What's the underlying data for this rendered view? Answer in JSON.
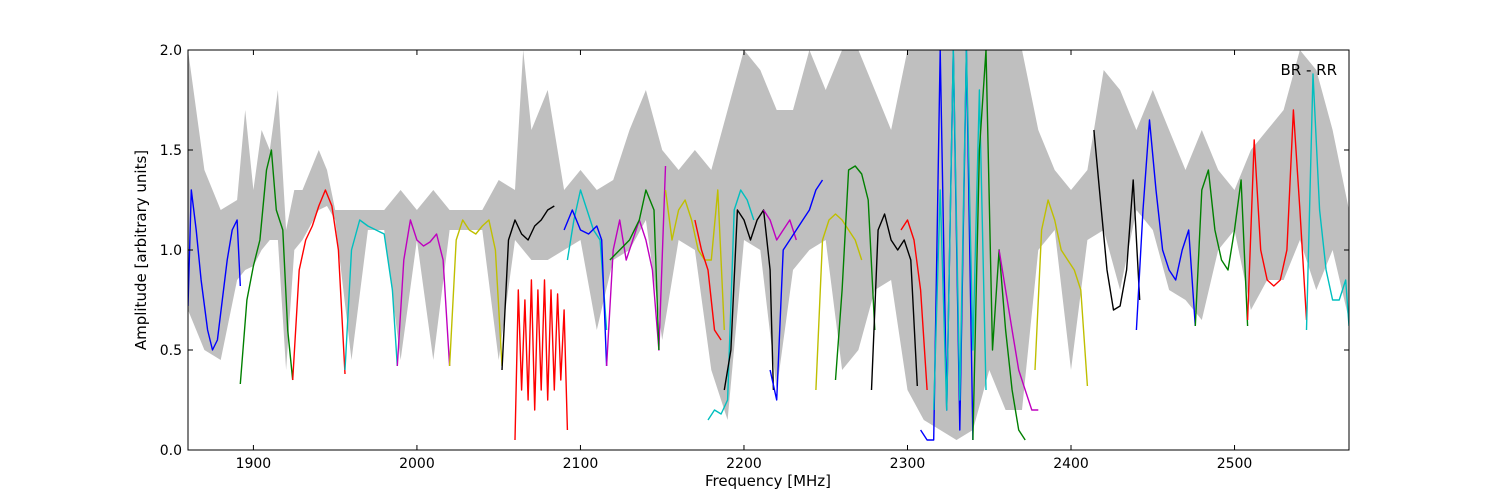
{
  "chart_data": {
    "type": "line",
    "title": "",
    "xlabel": "Frequency [MHz]",
    "ylabel": "Amplitude [arbitrary units]",
    "xlim": [
      1860,
      2570
    ],
    "ylim": [
      0.0,
      2.0
    ],
    "xticks": [
      1900,
      2000,
      2100,
      2200,
      2300,
      2400,
      2500
    ],
    "xtick_labels": [
      "1900",
      "2000",
      "2100",
      "2200",
      "2300",
      "2400",
      "2500"
    ],
    "yticks": [
      0.0,
      0.5,
      1.0,
      1.5,
      2.0
    ],
    "ytick_labels": [
      "0.0",
      "0.5",
      "1.0",
      "1.5",
      "2.0"
    ],
    "annotation": "BR - RR",
    "grid": false,
    "envelope": {
      "color": "#bfbfbf",
      "x": [
        1860,
        1870,
        1880,
        1890,
        1895,
        1900,
        1905,
        1910,
        1915,
        1920,
        1925,
        1930,
        1940,
        1945,
        1950,
        1960,
        1970,
        1980,
        1990,
        2000,
        2010,
        2020,
        2030,
        2040,
        2050,
        2060,
        2065,
        2070,
        2080,
        2090,
        2100,
        2110,
        2120,
        2130,
        2140,
        2150,
        2160,
        2170,
        2180,
        2190,
        2200,
        2210,
        2220,
        2230,
        2240,
        2250,
        2260,
        2270,
        2280,
        2290,
        2300,
        2310,
        2320,
        2330,
        2340,
        2350,
        2360,
        2370,
        2380,
        2390,
        2400,
        2410,
        2420,
        2430,
        2440,
        2450,
        2460,
        2470,
        2480,
        2490,
        2500,
        2510,
        2520,
        2530,
        2540,
        2550,
        2560,
        2570
      ],
      "low": [
        0.7,
        0.5,
        0.45,
        0.85,
        0.9,
        0.92,
        1.0,
        1.05,
        1.05,
        0.4,
        1.0,
        1.05,
        1.2,
        1.22,
        1.15,
        0.45,
        1.1,
        1.1,
        0.45,
        1.05,
        0.45,
        1.1,
        1.1,
        1.1,
        0.45,
        1.05,
        1.0,
        0.95,
        0.95,
        1.0,
        1.05,
        0.6,
        0.95,
        1.0,
        1.15,
        0.55,
        1.05,
        1.0,
        0.4,
        0.15,
        1.05,
        1.0,
        0.3,
        0.9,
        1.0,
        1.05,
        0.4,
        0.5,
        0.8,
        0.85,
        0.3,
        0.15,
        0.1,
        0.05,
        0.1,
        0.4,
        0.2,
        0.2,
        1.0,
        1.1,
        0.4,
        1.05,
        1.1,
        0.8,
        1.2,
        1.1,
        0.8,
        0.75,
        0.65,
        1.0,
        1.1,
        0.7,
        0.85,
        0.85,
        1.05,
        0.8,
        1.0,
        0.65
      ],
      "high": [
        2.0,
        1.4,
        1.2,
        1.25,
        1.7,
        1.3,
        1.6,
        1.5,
        1.8,
        1.1,
        1.3,
        1.3,
        1.5,
        1.4,
        1.2,
        1.2,
        1.2,
        1.2,
        1.3,
        1.2,
        1.3,
        1.2,
        1.2,
        1.2,
        1.35,
        1.3,
        2.0,
        1.6,
        1.8,
        1.3,
        1.4,
        1.3,
        1.35,
        1.6,
        1.8,
        1.5,
        1.4,
        1.5,
        1.4,
        1.7,
        2.0,
        1.9,
        1.7,
        1.7,
        2.0,
        1.8,
        2.0,
        2.0,
        1.8,
        1.6,
        2.0,
        2.0,
        2.0,
        2.0,
        2.0,
        2.0,
        2.0,
        2.0,
        1.6,
        1.4,
        1.3,
        1.4,
        1.9,
        1.8,
        1.6,
        1.8,
        1.6,
        1.4,
        1.6,
        1.4,
        1.3,
        1.5,
        1.6,
        1.7,
        2.0,
        1.9,
        1.6,
        1.2
      ]
    },
    "series": [
      {
        "color": "#0000ff",
        "x": [
          1860,
          1862,
          1865,
          1868,
          1872,
          1875,
          1878,
          1881,
          1884,
          1887,
          1890,
          1892
        ],
        "y": [
          0.72,
          1.3,
          1.1,
          0.85,
          0.6,
          0.5,
          0.55,
          0.75,
          0.95,
          1.1,
          1.15,
          0.82
        ]
      },
      {
        "color": "#008000",
        "x": [
          1892,
          1896,
          1900,
          1904,
          1908,
          1911,
          1914,
          1918,
          1921,
          1924
        ],
        "y": [
          0.33,
          0.75,
          0.92,
          1.05,
          1.4,
          1.5,
          1.2,
          1.1,
          0.6,
          0.35
        ]
      },
      {
        "color": "#ff0000",
        "x": [
          1924,
          1928,
          1932,
          1936,
          1940,
          1944,
          1948,
          1952,
          1956
        ],
        "y": [
          0.35,
          0.9,
          1.05,
          1.12,
          1.22,
          1.3,
          1.22,
          1.0,
          0.38
        ]
      },
      {
        "color": "#00bfbf",
        "x": [
          1956,
          1960,
          1965,
          1970,
          1975,
          1980,
          1985,
          1988
        ],
        "y": [
          0.4,
          1.0,
          1.15,
          1.12,
          1.1,
          1.08,
          0.8,
          0.42
        ]
      },
      {
        "color": "#bf00bf",
        "x": [
          1988,
          1992,
          1996,
          2000,
          2004,
          2008,
          2012,
          2016,
          2020
        ],
        "y": [
          0.42,
          0.95,
          1.15,
          1.05,
          1.02,
          1.04,
          1.08,
          0.95,
          0.42
        ]
      },
      {
        "color": "#bfbf00",
        "x": [
          2020,
          2024,
          2028,
          2032,
          2036,
          2040,
          2044,
          2048,
          2052
        ],
        "y": [
          0.42,
          1.05,
          1.15,
          1.1,
          1.08,
          1.12,
          1.15,
          1.0,
          0.42
        ]
      },
      {
        "color": "#000000",
        "x": [
          2052,
          2056,
          2060,
          2064,
          2068,
          2072,
          2076,
          2080,
          2084
        ],
        "y": [
          0.4,
          1.05,
          1.15,
          1.08,
          1.05,
          1.12,
          1.15,
          1.2,
          1.22
        ]
      },
      {
        "color": "#ff0000",
        "x": [
          2060,
          2062,
          2064,
          2066,
          2068,
          2070,
          2072,
          2074,
          2076,
          2078,
          2080,
          2082,
          2084,
          2086,
          2088,
          2090,
          2092
        ],
        "y": [
          0.05,
          0.8,
          0.3,
          0.75,
          0.25,
          0.85,
          0.2,
          0.8,
          0.3,
          0.85,
          0.25,
          0.8,
          0.3,
          0.78,
          0.35,
          0.7,
          0.1
        ]
      },
      {
        "color": "#00bfbf",
        "x": [
          2092,
          2096,
          2100,
          2104,
          2108,
          2112,
          2116
        ],
        "y": [
          0.95,
          1.15,
          1.3,
          1.2,
          1.1,
          1.05,
          0.6
        ]
      },
      {
        "color": "#0000ff",
        "x": [
          2090,
          2095,
          2100,
          2105,
          2110,
          2113,
          2116
        ],
        "y": [
          1.1,
          1.2,
          1.1,
          1.08,
          1.12,
          1.05,
          0.42
        ]
      },
      {
        "color": "#bf00bf",
        "x": [
          2116,
          2120,
          2124,
          2128,
          2132,
          2136,
          2140,
          2144,
          2148,
          2152
        ],
        "y": [
          0.42,
          1.0,
          1.15,
          0.95,
          1.05,
          1.15,
          1.05,
          0.9,
          0.5,
          1.42
        ]
      },
      {
        "color": "#008000",
        "x": [
          2118,
          2124,
          2130,
          2136,
          2140,
          2145,
          2148
        ],
        "y": [
          0.95,
          1.0,
          1.05,
          1.15,
          1.3,
          1.2,
          0.5
        ]
      },
      {
        "color": "#bfbf00",
        "x": [
          2152,
          2156,
          2160,
          2164,
          2168,
          2172,
          2176,
          2180,
          2184,
          2188
        ],
        "y": [
          1.3,
          1.05,
          1.2,
          1.25,
          1.15,
          1.0,
          0.95,
          0.95,
          1.3,
          0.6
        ]
      },
      {
        "color": "#ff0000",
        "x": [
          2170,
          2174,
          2178,
          2182,
          2186
        ],
        "y": [
          1.15,
          1.0,
          0.9,
          0.6,
          0.55
        ]
      },
      {
        "color": "#00bfbf",
        "x": [
          2178,
          2182,
          2186,
          2190,
          2194,
          2198,
          2202,
          2206
        ],
        "y": [
          0.15,
          0.2,
          0.18,
          0.25,
          1.2,
          1.3,
          1.25,
          1.15
        ]
      },
      {
        "color": "#000000",
        "x": [
          2188,
          2192,
          2196,
          2200,
          2204,
          2208,
          2212,
          2216,
          2218
        ],
        "y": [
          0.3,
          0.5,
          1.2,
          1.15,
          1.05,
          1.15,
          1.2,
          0.9,
          0.3
        ]
      },
      {
        "color": "#bf00bf",
        "x": [
          2212,
          2216,
          2220,
          2224,
          2228,
          2232
        ],
        "y": [
          1.2,
          1.15,
          1.05,
          1.1,
          1.15,
          1.05
        ]
      },
      {
        "color": "#0000ff",
        "x": [
          2216,
          2220,
          2224,
          2228,
          2232,
          2236,
          2240,
          2244,
          2248
        ],
        "y": [
          0.4,
          0.25,
          1.0,
          1.05,
          1.1,
          1.15,
          1.2,
          1.3,
          1.35
        ]
      },
      {
        "color": "#bfbf00",
        "x": [
          2244,
          2248,
          2252,
          2256,
          2260,
          2264,
          2268,
          2272
        ],
        "y": [
          0.3,
          1.05,
          1.15,
          1.18,
          1.15,
          1.1,
          1.05,
          0.95
        ]
      },
      {
        "color": "#008000",
        "x": [
          2256,
          2260,
          2264,
          2268,
          2272,
          2276,
          2280
        ],
        "y": [
          0.35,
          0.8,
          1.4,
          1.42,
          1.38,
          1.25,
          0.6
        ]
      },
      {
        "color": "#000000",
        "x": [
          2278,
          2282,
          2286,
          2290,
          2294,
          2298,
          2302,
          2306
        ],
        "y": [
          0.3,
          1.1,
          1.18,
          1.05,
          1.0,
          1.05,
          0.95,
          0.32
        ]
      },
      {
        "color": "#ff0000",
        "x": [
          2296,
          2300,
          2304,
          2308,
          2312
        ],
        "y": [
          1.1,
          1.15,
          1.05,
          0.8,
          0.3
        ]
      },
      {
        "color": "#0000ff",
        "x": [
          2308,
          2312,
          2316,
          2320,
          2324,
          2328,
          2332,
          2336,
          2340
        ],
        "y": [
          0.1,
          0.05,
          0.05,
          2.0,
          0.2,
          2.0,
          0.1,
          2.0,
          0.05
        ]
      },
      {
        "color": "#00bfbf",
        "x": [
          2316,
          2320,
          2324,
          2328,
          2332,
          2336,
          2340,
          2344,
          2348
        ],
        "y": [
          0.2,
          1.3,
          0.2,
          2.0,
          0.25,
          2.0,
          0.5,
          1.8,
          0.3
        ]
      },
      {
        "color": "#008000",
        "x": [
          2340,
          2344,
          2348,
          2352,
          2356,
          2360,
          2364,
          2368,
          2372
        ],
        "y": [
          0.05,
          1.5,
          2.0,
          0.5,
          1.0,
          0.6,
          0.3,
          0.1,
          0.05
        ]
      },
      {
        "color": "#bf00bf",
        "x": [
          2356,
          2360,
          2364,
          2368,
          2372,
          2376,
          2380
        ],
        "y": [
          1.0,
          0.8,
          0.6,
          0.4,
          0.3,
          0.2,
          0.2
        ]
      },
      {
        "color": "#bfbf00",
        "x": [
          2378,
          2382,
          2386,
          2390,
          2394,
          2398,
          2402,
          2406,
          2410
        ],
        "y": [
          0.4,
          1.1,
          1.25,
          1.15,
          1.0,
          0.95,
          0.9,
          0.8,
          0.32
        ]
      },
      {
        "color": "#000000",
        "x": [
          2414,
          2418,
          2422,
          2426,
          2430,
          2434,
          2438,
          2442
        ],
        "y": [
          1.6,
          1.25,
          0.9,
          0.7,
          0.72,
          0.9,
          1.35,
          0.75
        ]
      },
      {
        "color": "#0000ff",
        "x": [
          2440,
          2444,
          2448,
          2452,
          2456,
          2460,
          2464,
          2468,
          2472,
          2476
        ],
        "y": [
          0.6,
          1.2,
          1.65,
          1.3,
          1.0,
          0.9,
          0.85,
          1.0,
          1.1,
          0.62
        ]
      },
      {
        "color": "#008000",
        "x": [
          2476,
          2480,
          2484,
          2488,
          2492,
          2496,
          2500,
          2504,
          2508
        ],
        "y": [
          0.62,
          1.3,
          1.4,
          1.1,
          0.95,
          0.9,
          1.1,
          1.35,
          0.62
        ]
      },
      {
        "color": "#ff0000",
        "x": [
          2508,
          2512,
          2516,
          2520,
          2524,
          2528,
          2532,
          2536,
          2540,
          2544
        ],
        "y": [
          0.65,
          1.55,
          1.0,
          0.85,
          0.82,
          0.85,
          1.0,
          1.7,
          1.2,
          0.65
        ]
      },
      {
        "color": "#00bfbf",
        "x": [
          2544,
          2548,
          2552,
          2556,
          2560,
          2564,
          2568,
          2570
        ],
        "y": [
          0.6,
          1.88,
          1.2,
          0.9,
          0.75,
          0.75,
          0.85,
          0.62
        ]
      }
    ]
  }
}
